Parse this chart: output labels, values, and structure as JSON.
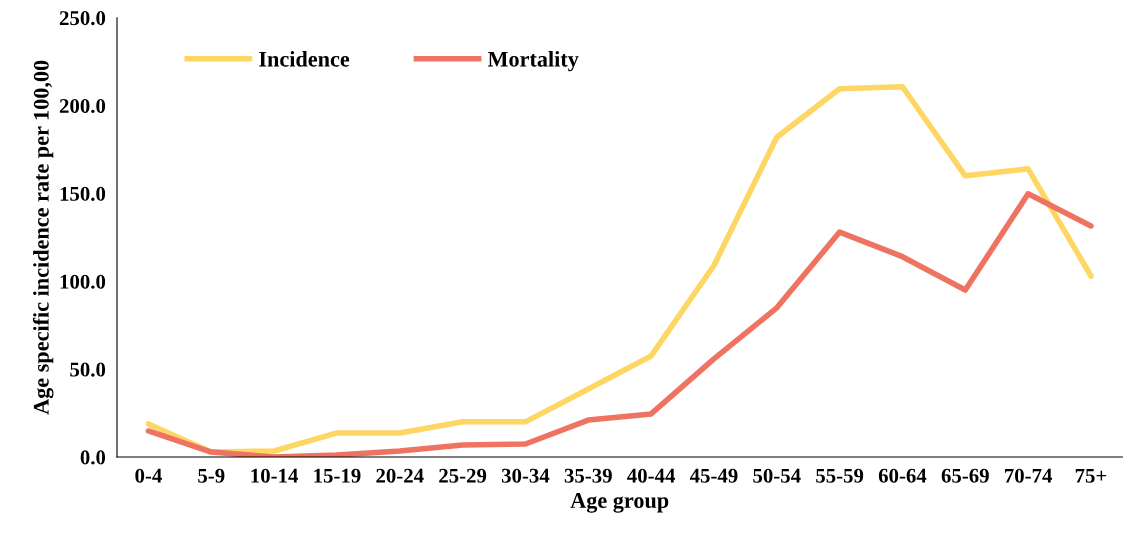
{
  "chart_data": {
    "type": "line",
    "xlabel": "Age group",
    "ylabel": "Age specific incidence rate per 100,00",
    "categories": [
      "0-4",
      "5-9",
      "10-14",
      "15-19",
      "20-24",
      "25-29",
      "30-34",
      "35-39",
      "40-44",
      "45-49",
      "50-54",
      "55-59",
      "60-64",
      "65-69",
      "70-74",
      "75+"
    ],
    "series": [
      {
        "name": "Incidence",
        "color": "#fdd663",
        "values": [
          18.8,
          2.8,
          3.4,
          13.7,
          13.7,
          20,
          20,
          38.7,
          57.5,
          109,
          182,
          209.6,
          210.7,
          160,
          164,
          103
        ]
      },
      {
        "name": "Mortality",
        "color": "#ee7360",
        "values": [
          14.8,
          2.8,
          0,
          1.1,
          3.4,
          6.8,
          7.4,
          21,
          24.5,
          55.8,
          84.9,
          128,
          114,
          95,
          149.8,
          131.5
        ]
      }
    ],
    "ylim": [
      0,
      250
    ],
    "yticks": [
      {
        "value": 0,
        "label": "0.0"
      },
      {
        "value": 50,
        "label": "50.0"
      },
      {
        "value": 100,
        "label": "100.0"
      },
      {
        "value": 150,
        "label": "150.0"
      },
      {
        "value": 200,
        "label": "200.0"
      },
      {
        "value": 250,
        "label": "250.0"
      }
    ],
    "grid": false,
    "legend": "top left",
    "marker": "none",
    "line_style": "solid"
  }
}
